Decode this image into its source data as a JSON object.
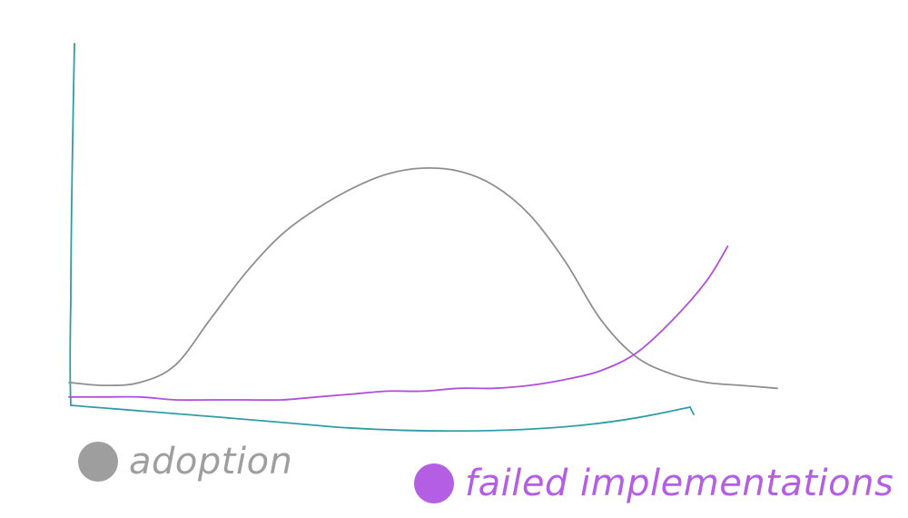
{
  "chart_data": {
    "type": "line",
    "title": "",
    "xlabel": "",
    "ylabel": "",
    "grid": false,
    "legend_position": "bottom",
    "axis_color": "#2e9ea6",
    "series": [
      {
        "name": "adoption",
        "color": "#8f8f8f",
        "x": [
          0,
          5,
          10,
          15,
          20,
          25,
          30,
          35,
          40,
          45,
          50,
          55,
          60,
          65,
          70,
          75,
          80,
          85,
          90,
          95,
          100
        ],
        "y": [
          6,
          5,
          6,
          12,
          28,
          44,
          57,
          66,
          73,
          78,
          80,
          79,
          74,
          64,
          48,
          28,
          15,
          9,
          6,
          5,
          4
        ]
      },
      {
        "name": "failed implementations",
        "color": "#b050d8",
        "x": [
          0,
          5,
          10,
          15,
          20,
          25,
          30,
          35,
          40,
          45,
          50,
          55,
          60,
          65,
          70,
          75,
          80,
          85,
          90,
          93
        ],
        "y": [
          1,
          1,
          1,
          0,
          0,
          0,
          0,
          1,
          2,
          3,
          3,
          4,
          4,
          5,
          7,
          10,
          16,
          27,
          41,
          53
        ]
      }
    ]
  },
  "legend": {
    "adoption": {
      "label": "adoption",
      "color": "#9e9e9e"
    },
    "failed": {
      "label": "failed implementations",
      "color": "#b45ee3"
    }
  }
}
